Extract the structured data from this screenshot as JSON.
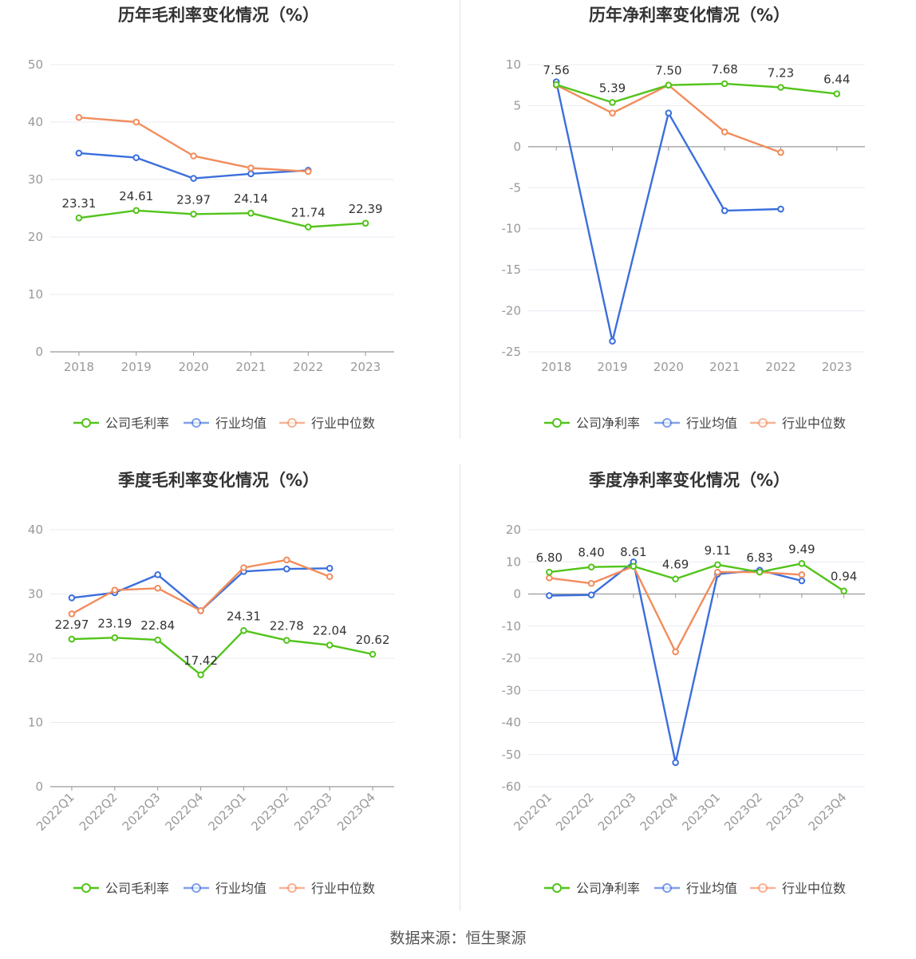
{
  "source_text": "数据来源：恒生聚源",
  "colors": {
    "company": "#52c41a",
    "avg": "#3b6fdd",
    "median": "#f28c5c",
    "grid": "#e8ebf3",
    "axis": "#999999",
    "tick": "#999999",
    "label": "#333333"
  },
  "chart_data": [
    {
      "type": "line",
      "title": "历年毛利率变化情况（%）",
      "categories": [
        "2018",
        "2019",
        "2020",
        "2021",
        "2022",
        "2023"
      ],
      "ylim": [
        0,
        50
      ],
      "yticks": [
        0,
        10,
        20,
        30,
        40,
        50
      ],
      "grid": true,
      "legend_position": "bottom",
      "series": [
        {
          "name": "公司毛利率",
          "color": "#52c41a",
          "labels": true,
          "values": [
            23.31,
            24.61,
            23.97,
            24.14,
            21.74,
            22.39
          ]
        },
        {
          "name": "行业均值",
          "color": "#3b6fdd",
          "labels": false,
          "values": [
            34.6,
            33.8,
            30.2,
            31.0,
            31.6,
            null
          ]
        },
        {
          "name": "行业中位数",
          "color": "#f28c5c",
          "labels": false,
          "values": [
            40.8,
            40.0,
            34.1,
            32.0,
            31.4,
            null
          ]
        }
      ]
    },
    {
      "type": "line",
      "title": "历年净利率变化情况（%）",
      "categories": [
        "2018",
        "2019",
        "2020",
        "2021",
        "2022",
        "2023"
      ],
      "ylim": [
        -25,
        10
      ],
      "yticks": [
        -25,
        -20,
        -15,
        -10,
        -5,
        0,
        5,
        10
      ],
      "grid": true,
      "legend_position": "bottom",
      "series": [
        {
          "name": "公司净利率",
          "color": "#52c41a",
          "labels": true,
          "values": [
            7.56,
            5.39,
            7.5,
            7.68,
            7.23,
            6.44
          ]
        },
        {
          "name": "行业均值",
          "color": "#3b6fdd",
          "labels": false,
          "values": [
            7.9,
            -23.7,
            4.1,
            -7.8,
            -7.6,
            null
          ]
        },
        {
          "name": "行业中位数",
          "color": "#f28c5c",
          "labels": false,
          "values": [
            7.5,
            4.1,
            7.5,
            1.8,
            -0.7,
            null
          ]
        }
      ]
    },
    {
      "type": "line",
      "title": "季度毛利率变化情况（%）",
      "categories": [
        "2022Q1",
        "2022Q2",
        "2022Q3",
        "2022Q4",
        "2023Q1",
        "2023Q2",
        "2023Q3",
        "2023Q4"
      ],
      "ylim": [
        0,
        40
      ],
      "yticks": [
        0,
        10,
        20,
        30,
        40
      ],
      "grid": true,
      "legend_position": "bottom",
      "series": [
        {
          "name": "公司毛利率",
          "color": "#52c41a",
          "labels": true,
          "values": [
            22.97,
            23.19,
            22.84,
            17.42,
            24.31,
            22.78,
            22.04,
            20.62
          ]
        },
        {
          "name": "行业均值",
          "color": "#3b6fdd",
          "labels": false,
          "values": [
            29.4,
            30.2,
            33.0,
            27.4,
            33.5,
            33.9,
            34.0,
            null
          ]
        },
        {
          "name": "行业中位数",
          "color": "#f28c5c",
          "labels": false,
          "values": [
            26.9,
            30.6,
            30.9,
            27.4,
            34.1,
            35.3,
            32.7,
            null
          ]
        }
      ]
    },
    {
      "type": "line",
      "title": "季度净利率变化情况（%）",
      "categories": [
        "2022Q1",
        "2022Q2",
        "2022Q3",
        "2022Q4",
        "2023Q1",
        "2023Q2",
        "2023Q3",
        "2023Q4"
      ],
      "ylim": [
        -60,
        20
      ],
      "yticks": [
        -60,
        -50,
        -40,
        -30,
        -20,
        -10,
        0,
        10,
        20
      ],
      "grid": true,
      "legend_position": "bottom",
      "series": [
        {
          "name": "公司净利率",
          "color": "#52c41a",
          "labels": true,
          "values": [
            6.8,
            8.4,
            8.61,
            4.69,
            9.11,
            6.83,
            9.49,
            0.94
          ]
        },
        {
          "name": "行业均值",
          "color": "#3b6fdd",
          "labels": false,
          "values": [
            -0.5,
            -0.3,
            10.0,
            -52.5,
            6.2,
            7.4,
            4.1,
            null
          ]
        },
        {
          "name": "行业中位数",
          "color": "#f28c5c",
          "labels": false,
          "values": [
            5.0,
            3.3,
            8.6,
            -18.0,
            6.8,
            6.8,
            6.0,
            null
          ]
        }
      ]
    }
  ]
}
